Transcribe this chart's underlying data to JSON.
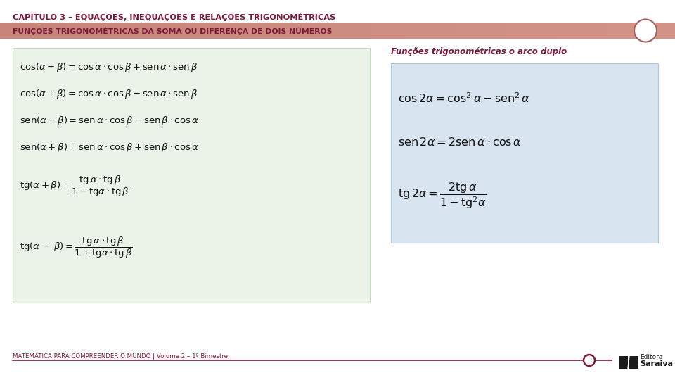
{
  "title": "CAPÍTULO 3 – EQUAÇÕES, INEQUAÇÕES E RELAÇÕES TRIGONOMÉTRICAS",
  "subtitle": "FUNÇÕES TRIGONOMÉTRICAS DA SOMA OU DIFERENÇA DE DOIS NÚMEROS",
  "footer": "MATEMÁTICA PARA COMPREENDER O MUNDO | Volume 2 – 1º Bimestre",
  "dark_red": "#7B1A3A",
  "green_box_bg": "#EBF2E8",
  "blue_box_bg": "#D8E4F0",
  "background": "#FFFFFF",
  "banner_color": "#C8857A",
  "banner_text_color": "#7B1A3A",
  "circle_fill": "#FFFFFF",
  "circle_edge": "#B07070",
  "formula_label": "Funções trigonométricas o arco duplo",
  "formula_label_color": "#7B1A3A"
}
